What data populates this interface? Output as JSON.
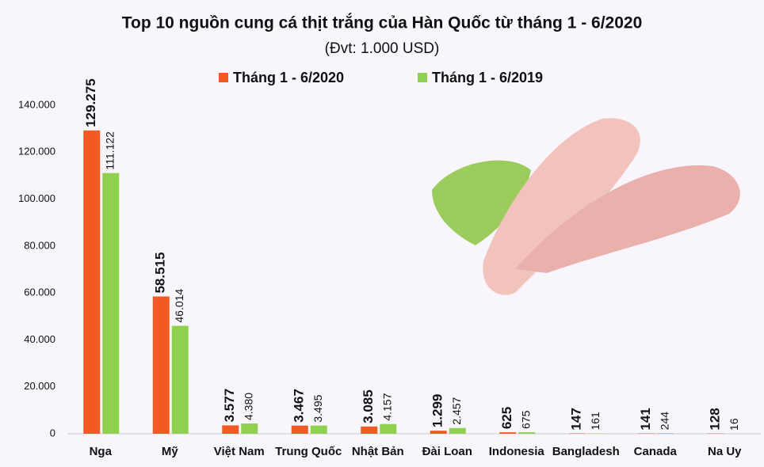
{
  "chart_data": {
    "type": "bar",
    "title": "Top 10 nguồn cung cá thịt trắng của Hàn Quốc từ tháng 1 - 6/2020",
    "subtitle": "(Đvt: 1.000 USD)",
    "categories": [
      "Nga",
      "Mỹ",
      "Việt Nam",
      "Trung Quốc",
      "Nhật Bản",
      "Đài Loan",
      "Indonesia",
      "Bangladesh",
      "Canada",
      "Na Uy"
    ],
    "series": [
      {
        "name": "Tháng 1 - 6/2020",
        "color": "#f15a22",
        "values": [
          129275,
          58515,
          3577,
          3467,
          3085,
          1299,
          625,
          147,
          141,
          128
        ],
        "value_labels": [
          "129.275",
          "58.515",
          "3.577",
          "3.467",
          "3.085",
          "1.299",
          "625",
          "147",
          "141",
          "128"
        ]
      },
      {
        "name": "Tháng 1 - 6/2019",
        "color": "#8fd14f",
        "values": [
          111122,
          46014,
          4380,
          3495,
          4157,
          2457,
          675,
          161,
          244,
          16
        ],
        "value_labels": [
          "111.122",
          "46.014",
          "4.380",
          "3.495",
          "4.157",
          "2.457",
          "675",
          "161",
          "244",
          "16"
        ]
      }
    ],
    "ylim": [
      0,
      140000
    ],
    "yticks": [
      0,
      {
        "value": 20000,
        "label": "20.000"
      },
      {
        "value": 40000,
        "label": "40.000"
      },
      {
        "value": 60000,
        "label": "60.000"
      },
      {
        "value": 80000,
        "label": "80.000"
      },
      {
        "value": 100000,
        "label": "100.000"
      },
      {
        "value": 120000,
        "label": "120.000"
      },
      {
        "value": 140000,
        "label": "140.000"
      }
    ],
    "grid": false,
    "legend": "top"
  }
}
